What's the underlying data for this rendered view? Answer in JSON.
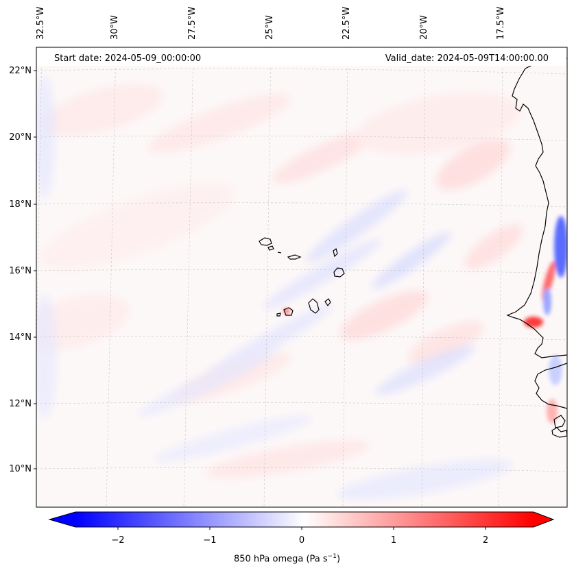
{
  "header": {
    "start_date": "Start date: 2024-05-09_00:00:00",
    "valid_date": "Valid_date: 2024-05-09T14:00:00.00"
  },
  "longitude_labels": [
    "32.5°W",
    "30°W",
    "27.5°W",
    "25°W",
    "22.5°W",
    "20°W",
    "17.5°W"
  ],
  "latitude_labels": [
    "22°N",
    "20°N",
    "18°N",
    "16°N",
    "14°N",
    "12°N",
    "10°N"
  ],
  "colorbar": {
    "ticks": [
      "−2",
      "−1",
      "0",
      "1",
      "2"
    ],
    "tick_values": [
      -2,
      -1,
      0,
      1,
      2
    ],
    "range": [
      -2.5,
      2.5
    ],
    "label_prefix": "850 hPa omega (Pa s",
    "label_exponent": "−1",
    "label_suffix": ")",
    "colormap": "bwr",
    "colors": {
      "negative": "#0000ff",
      "zero": "#ffffff",
      "positive": "#ff0000"
    }
  },
  "map": {
    "region": "Eastern tropical Atlantic — Cape Verde Islands and West African coast",
    "coastline_color": "#000000",
    "gridline_color": "#b0b0b0"
  }
}
